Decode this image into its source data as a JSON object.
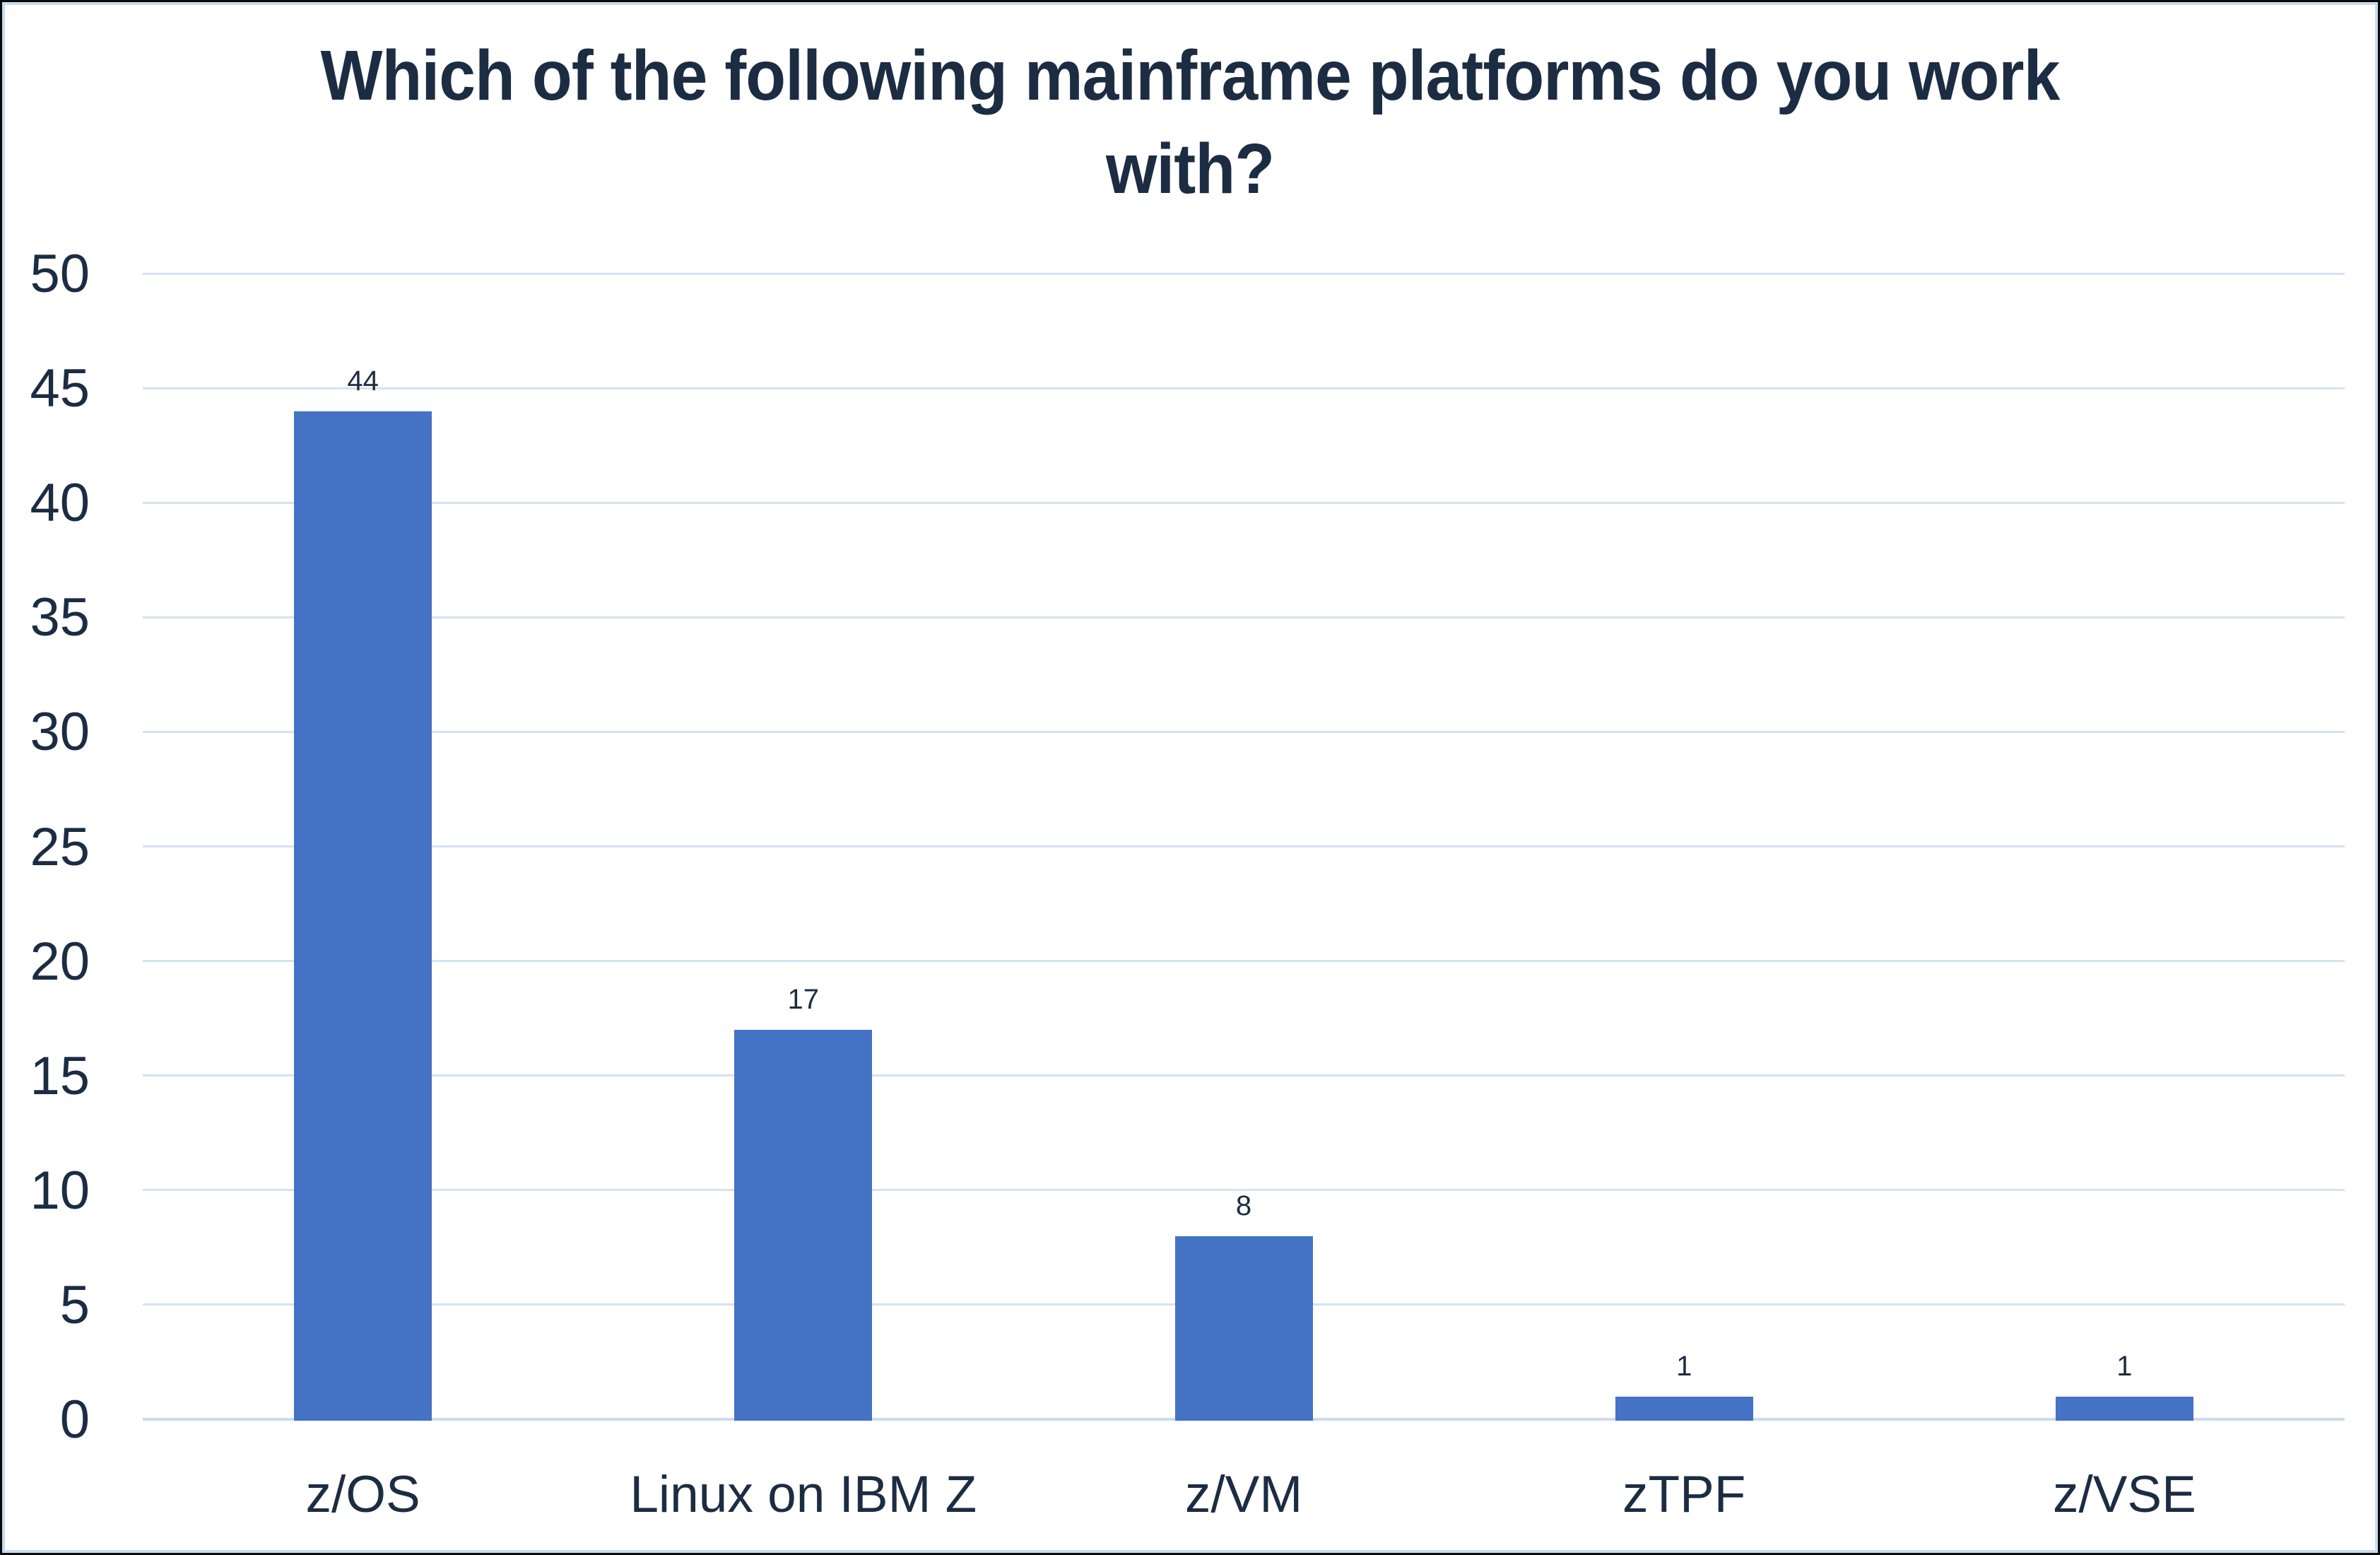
{
  "chart_data": {
    "type": "bar",
    "title": "Which of the following mainframe platforms do you work with?",
    "categories": [
      "z/OS",
      "Linux on IBM Z",
      "z/VM",
      "zTPF",
      "z/VSE"
    ],
    "values": [
      44,
      17,
      8,
      1,
      1
    ],
    "data_labels": [
      "44",
      "17",
      "8",
      "1",
      "1"
    ],
    "xlabel": "",
    "ylabel": "",
    "ylim": [
      0,
      50
    ],
    "yticks": [
      0,
      5,
      10,
      15,
      20,
      25,
      30,
      35,
      40,
      45,
      50
    ],
    "grid": true,
    "legend": false,
    "colors": {
      "bar": "#4472C4",
      "gridline": "#D5E2F3",
      "axis_line": "#CBDCEE",
      "text": "#1C2C42",
      "chart_border": "#C7DBF1",
      "outer_border": "#0A0A0A",
      "background": "#FFFFFF"
    }
  }
}
